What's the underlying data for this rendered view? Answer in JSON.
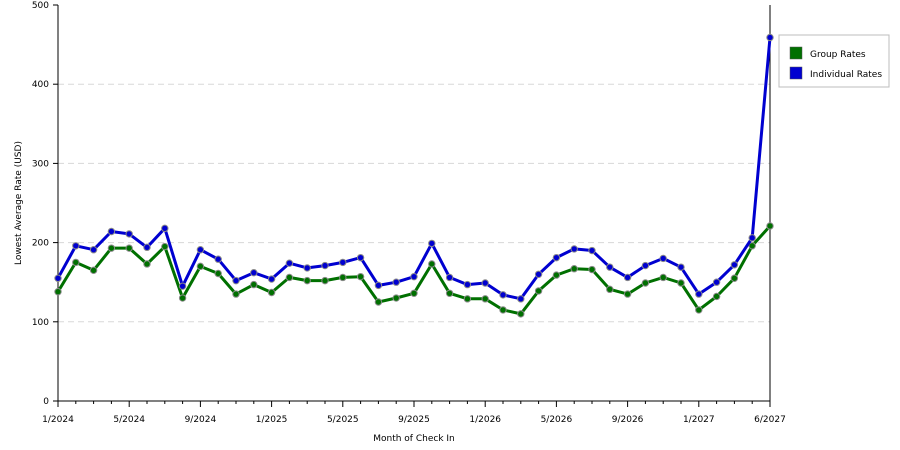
{
  "chart_data": {
    "type": "line",
    "title": "",
    "xlabel": "Month of Check In",
    "ylabel": "Lowest Average Rate (USD)",
    "ylim": [
      0,
      500
    ],
    "yticks": [
      "0",
      "100",
      "200",
      "300",
      "400",
      "500"
    ],
    "xticks": [
      "1/2024",
      "5/2024",
      "9/2024",
      "1/2025",
      "5/2025",
      "9/2025",
      "1/2026",
      "5/2026",
      "9/2026",
      "1/2027",
      "6/2027"
    ],
    "grid": true,
    "legend_position": "right",
    "series": [
      {
        "name": "Group Rates",
        "color": "#007000",
        "values": [
          138,
          175,
          165,
          193,
          193,
          173,
          195,
          130,
          170,
          161,
          135,
          147,
          137,
          156,
          152,
          152,
          156,
          157,
          125,
          130,
          136,
          173,
          136,
          129,
          129,
          115,
          110,
          139,
          159,
          167,
          166,
          141,
          135,
          149,
          156,
          149,
          115,
          132,
          155,
          196,
          221
        ]
      },
      {
        "name": "Individual Rates",
        "color": "#0000D0",
        "values": [
          155,
          196,
          191,
          214,
          211,
          194,
          218,
          145,
          191,
          179,
          152,
          162,
          154,
          174,
          168,
          171,
          175,
          181,
          146,
          150,
          157,
          199,
          156,
          147,
          149,
          134,
          129,
          160,
          181,
          192,
          190,
          169,
          156,
          171,
          180,
          169,
          135,
          150,
          172,
          206,
          459
        ]
      }
    ]
  }
}
